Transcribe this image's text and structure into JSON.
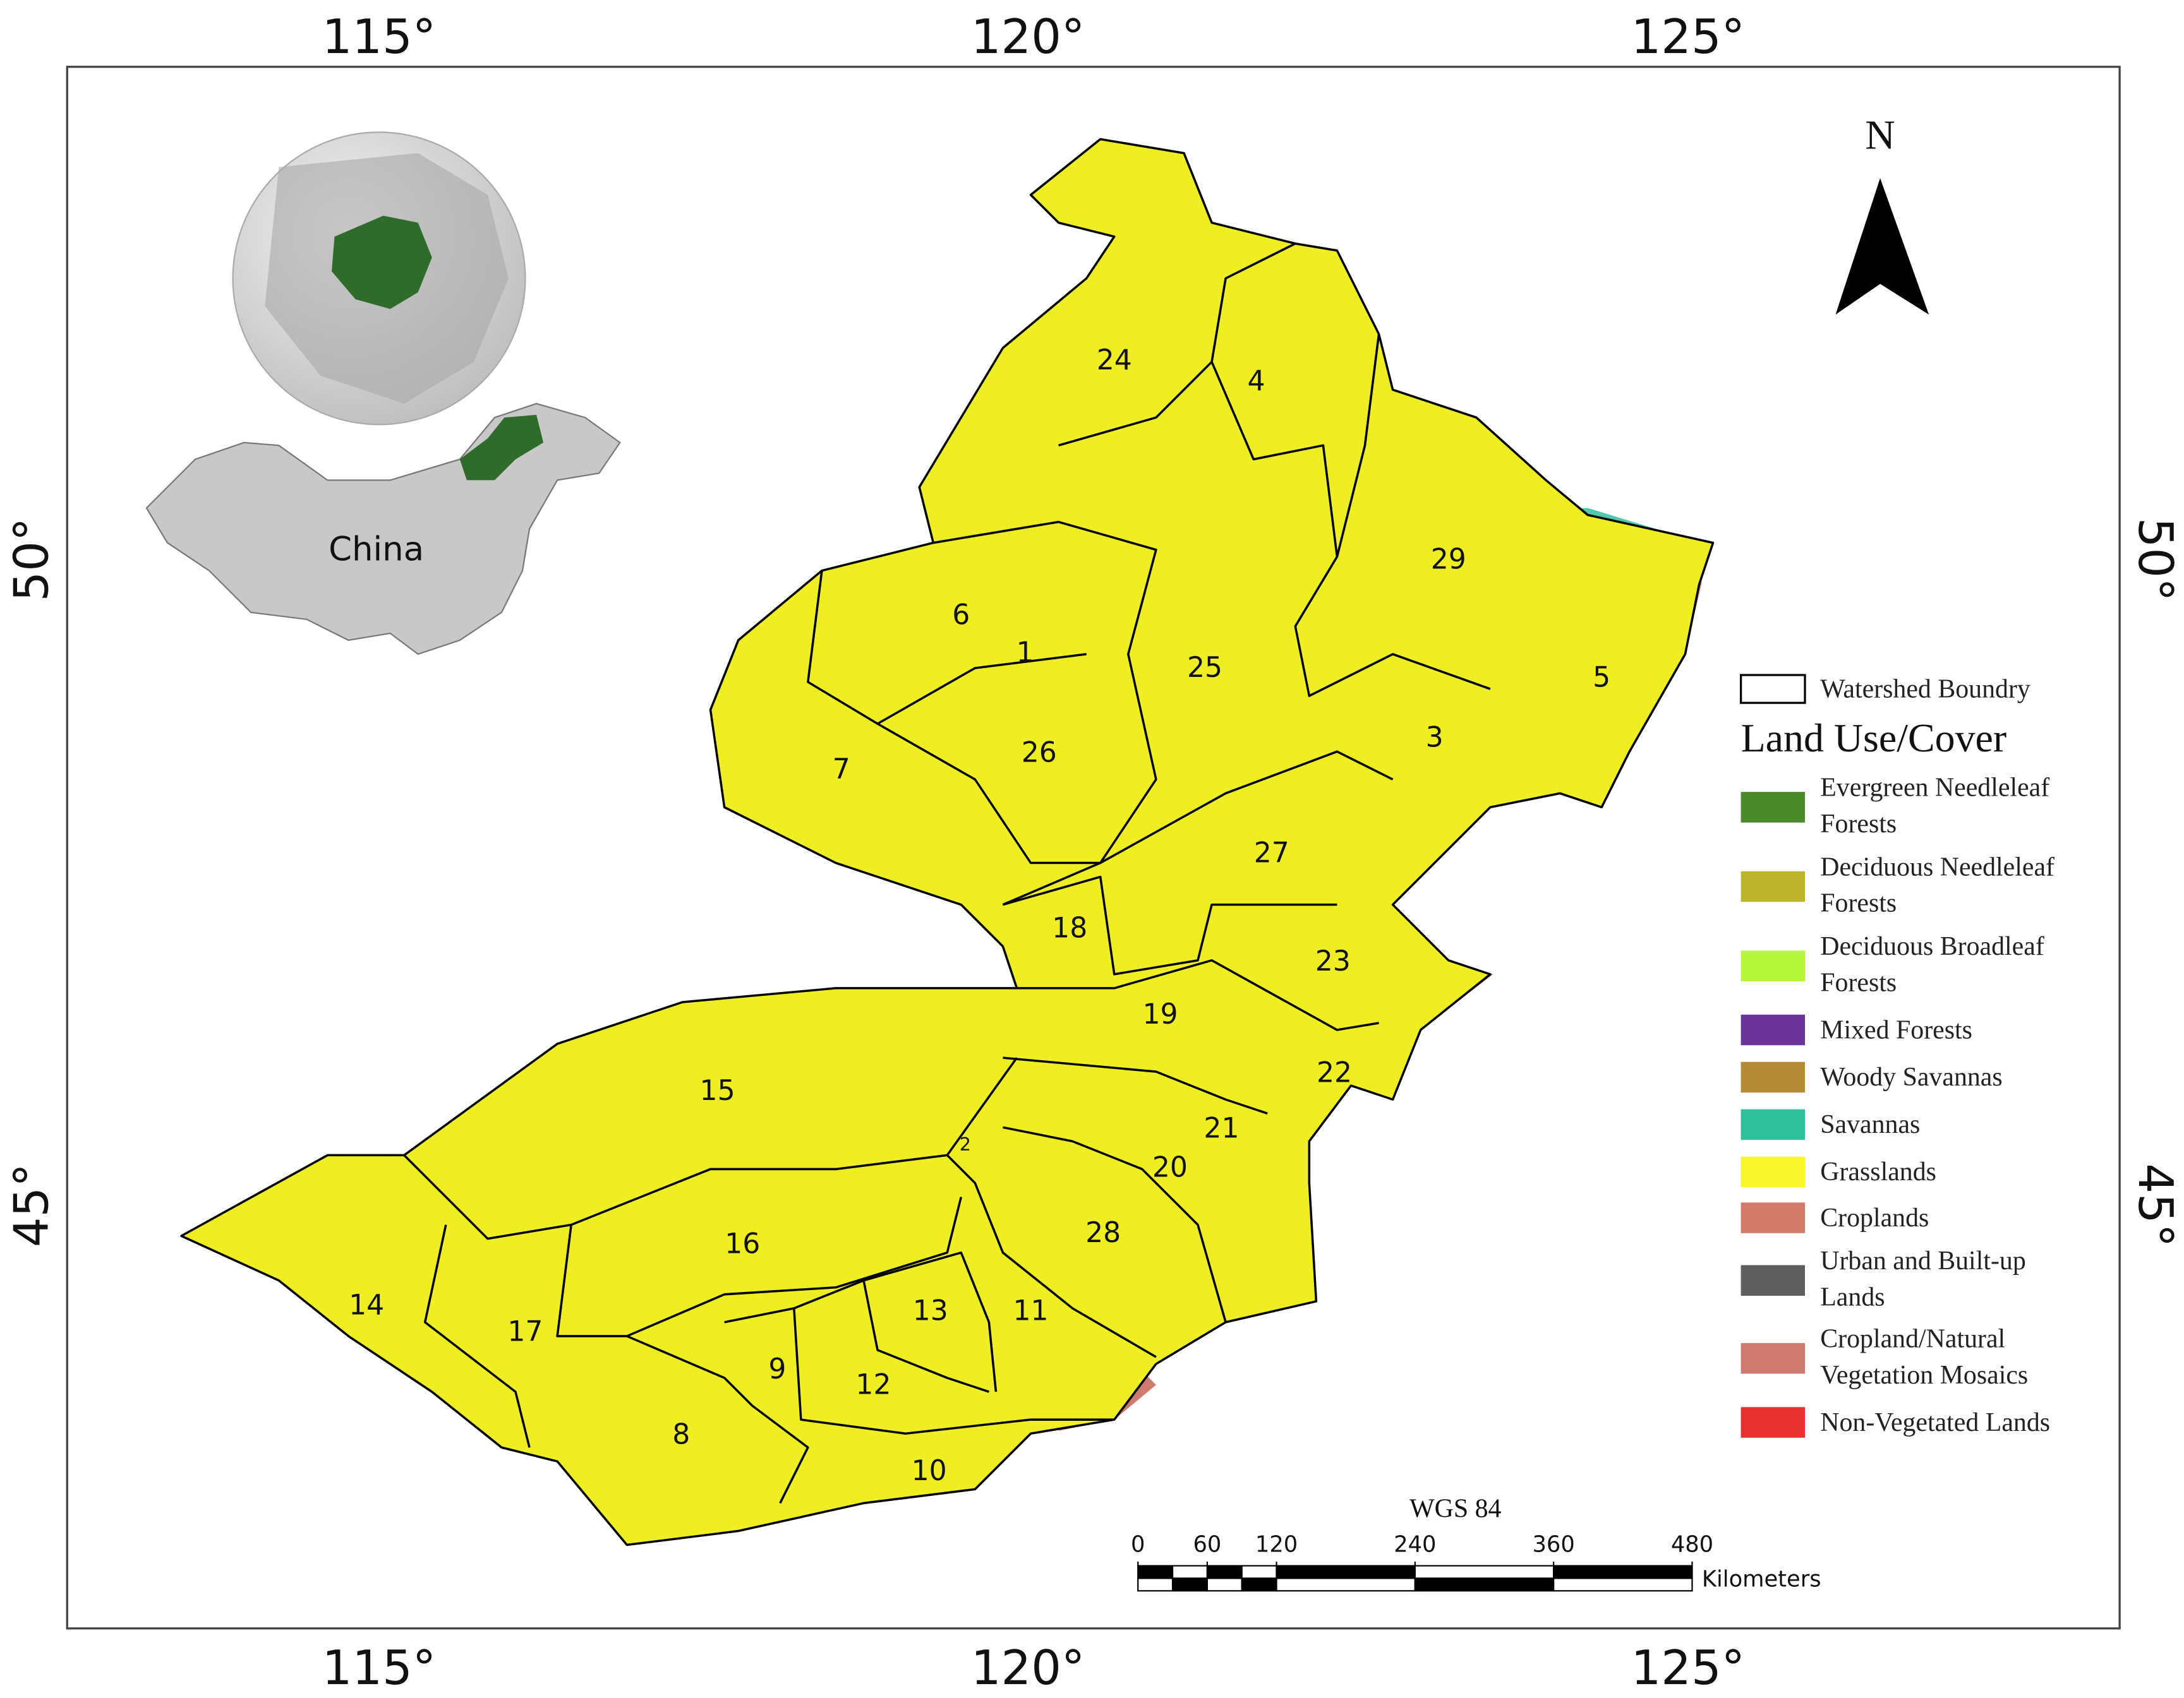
{
  "axes": {
    "top": [
      "115°",
      "120°",
      "125°"
    ],
    "bottom": [
      "115°",
      "120°",
      "125°"
    ],
    "left": [
      "50°",
      "45°"
    ],
    "right": [
      "50°",
      "45°"
    ]
  },
  "inset": {
    "country_label": "China"
  },
  "north_arrow": {
    "label": "N"
  },
  "legend": {
    "boundary_label": "Watershed Boundry",
    "title": "Land Use/Cover",
    "items": [
      {
        "label_lines": [
          "Evergreen Needleleaf",
          "Forests"
        ],
        "color": "#4a8a2a"
      },
      {
        "label_lines": [
          "Deciduous Needleleaf",
          "Forests"
        ],
        "color": "#bdb42e"
      },
      {
        "label_lines": [
          "Deciduous Broadleaf",
          "Forests"
        ],
        "color": "#b5f53a"
      },
      {
        "label_lines": [
          "Mixed Forests"
        ],
        "color": "#6a349a"
      },
      {
        "label_lines": [
          "Woody Savannas"
        ],
        "color": "#b58a35"
      },
      {
        "label_lines": [
          "Savannas"
        ],
        "color": "#2fbf9a"
      },
      {
        "label_lines": [
          "Grasslands"
        ],
        "color": "#f6f62a"
      },
      {
        "label_lines": [
          "Croplands"
        ],
        "color": "#d37a6b"
      },
      {
        "label_lines": [
          "Urban and Built-up",
          "Lands"
        ],
        "color": "#5e5e5e"
      },
      {
        "label_lines": [
          "Cropland/Natural",
          "Vegetation Mosaics"
        ],
        "color": "#d0796e"
      },
      {
        "label_lines": [
          "Non-Vegetated Lands"
        ],
        "color": "#e83030"
      }
    ]
  },
  "scale_bar": {
    "datum": "WGS 84",
    "ticks": [
      0,
      60,
      120,
      240,
      360,
      480
    ],
    "unit": "Kilometers"
  },
  "watersheds": [
    "24",
    "4",
    "29",
    "6",
    "1",
    "25",
    "5",
    "3",
    "26",
    "7",
    "27",
    "18",
    "23",
    "19",
    "22",
    "15",
    "21",
    "2",
    "20",
    "16",
    "28",
    "14",
    "17",
    "13",
    "11",
    "9",
    "12",
    "8",
    "10"
  ]
}
